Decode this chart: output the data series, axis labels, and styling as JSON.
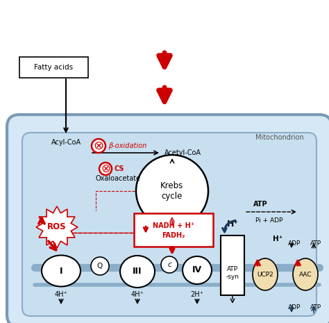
{
  "bg_color": "#ffffff",
  "mito_bg": "#d6e8f5",
  "mito_border": "#7a9ab5",
  "red": "#cc0000",
  "dark_blue": "#1a3a5c",
  "box_label": "Fatty acids",
  "mito_label": "Mitochondrion",
  "labels": {
    "acyl_coa": "Acyl-CoA",
    "acetyl_coa": "Acetyl-CoA",
    "oxaloacetate": "Oxaloacetate",
    "krebs": "Krebs\ncycle",
    "beta_ox": "β-oxidation",
    "cs": "CS",
    "nadh_line1": "NADH + H⁺",
    "nadh_line2": "FADH₂",
    "ros": "ROS",
    "atp_syn": "ATP\n-syn",
    "ucp2": "UCP2",
    "aac": "AAC",
    "atp_top": "ATP",
    "pi_adp": "Pi + ADP",
    "adp_right": "ADP",
    "atp_right": "ATP",
    "h_plus_top": "H⁺",
    "h_plus_side": "H⁺",
    "4h1": "4H⁺",
    "4h2": "4H⁺",
    "2h": "2H⁺",
    "adp_bottom": "ADP",
    "atp_bottom": "ATP",
    "q_label": "Q",
    "c_label": "c",
    "i_label": "I",
    "iii_label": "III",
    "iv_label": "IV"
  }
}
